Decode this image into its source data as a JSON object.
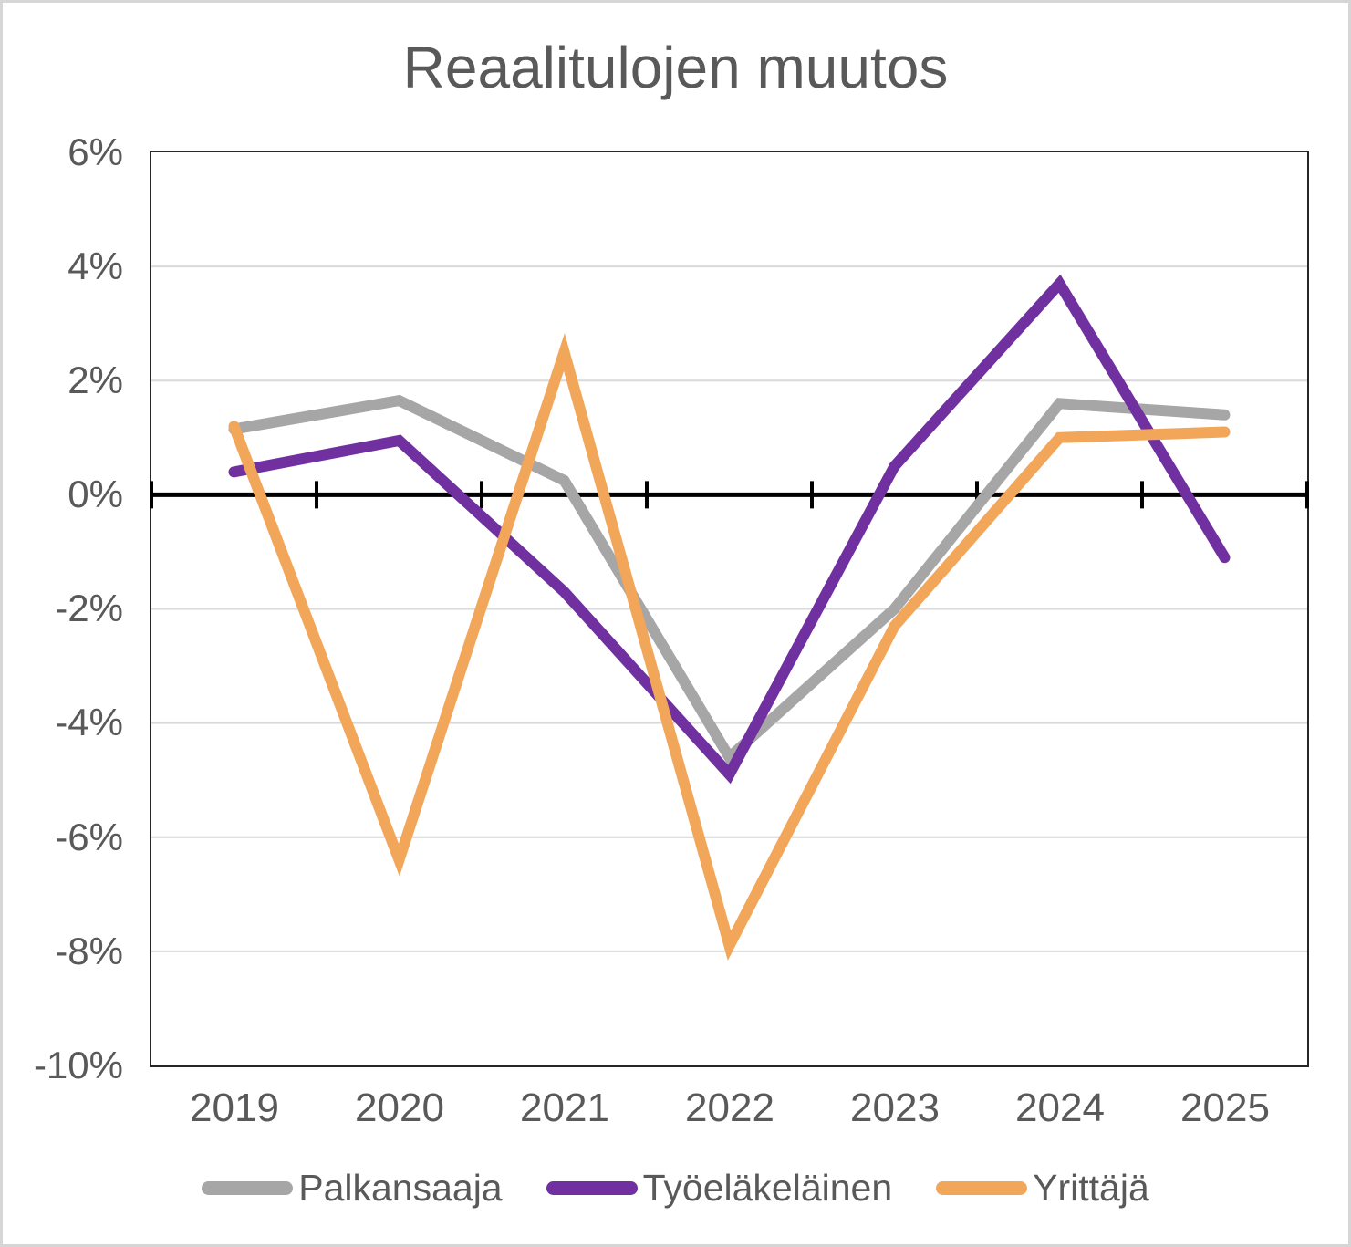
{
  "page": {
    "title": "Reaalitulojen muutos"
  },
  "chart_data": {
    "type": "line",
    "title": "Reaalitulojen muutos",
    "categories": [
      "2019",
      "2020",
      "2021",
      "2022",
      "2023",
      "2024",
      "2025"
    ],
    "series": [
      {
        "name": "Palkansaaja",
        "color": "#A6A6A6",
        "values": [
          1.15,
          1.65,
          0.25,
          -4.6,
          -2.0,
          1.6,
          1.4
        ]
      },
      {
        "name": "Työeläkeläinen",
        "color": "#7030A0",
        "values": [
          0.4,
          0.95,
          -1.7,
          -4.9,
          0.5,
          3.7,
          -1.1
        ]
      },
      {
        "name": "Yrittäjä",
        "color": "#F2A65A",
        "values": [
          1.2,
          -6.4,
          2.5,
          -7.9,
          -2.3,
          1.0,
          1.1
        ]
      }
    ],
    "ylim": [
      -10,
      6
    ],
    "y_tick_step": 2,
    "y_tick_labels": [
      "6%",
      "4%",
      "2%",
      "0%",
      "-2%",
      "-4%",
      "-6%",
      "-8%",
      "-10%"
    ],
    "gridline_values": [
      4,
      2,
      -2,
      -4,
      -6,
      -8
    ],
    "zero_axis_value": 0,
    "grid": true,
    "legend_position": "bottom",
    "colors": {
      "gridline": "#D9D9D9",
      "zero_axis": "#000000",
      "plot_border": "#262626",
      "text": "#595959"
    }
  }
}
